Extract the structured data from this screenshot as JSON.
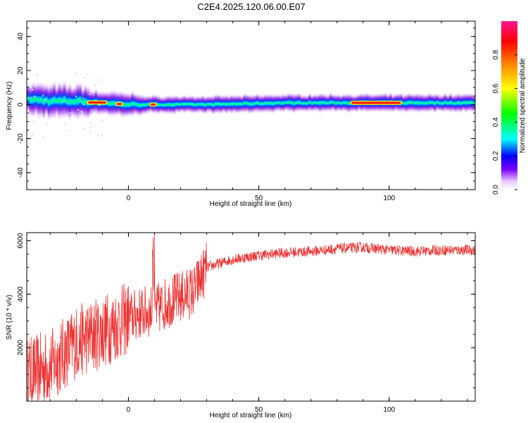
{
  "title": "C2E4.2025.120.06.00.E07",
  "chart_data": [
    {
      "type": "heatmap",
      "xlabel": "Height of straight line (km)",
      "ylabel": "Frequency (Hz)",
      "xlim": [
        -39,
        133
      ],
      "ylim": [
        -50,
        49
      ],
      "x_ticks": [
        0,
        50,
        100
      ],
      "x_tick_labels": [
        "0",
        "50",
        "100"
      ],
      "y_ticks": [
        -40,
        -20,
        0,
        20,
        40
      ],
      "y_tick_labels": [
        "-40",
        "-20",
        "0",
        "20",
        "40"
      ],
      "colorbar": {
        "label": "Normalized spectral amplitude",
        "range": [
          0,
          1
        ],
        "ticks": [
          0.0,
          0.2,
          0.4,
          0.6,
          0.8
        ],
        "tick_labels": [
          "0.0",
          "0.2",
          "0.4",
          "0.6",
          "0.8"
        ]
      },
      "ridge_center_hz": [
        [
          -39,
          3
        ],
        [
          -30,
          2
        ],
        [
          -20,
          2
        ],
        [
          -10,
          1
        ],
        [
          0,
          0
        ],
        [
          10,
          0
        ],
        [
          30,
          0
        ],
        [
          60,
          1
        ],
        [
          100,
          1
        ],
        [
          133,
          1
        ]
      ],
      "peak_segments_x": [
        [
          -16,
          -8
        ],
        [
          -5,
          -2
        ],
        [
          8,
          11
        ],
        [
          85,
          105
        ]
      ]
    },
    {
      "type": "line",
      "xlabel": "Height of straight line (km)",
      "ylabel": "SNR (10 * v/v)",
      "xlim": [
        -39,
        133
      ],
      "ylim": [
        0,
        6300
      ],
      "x_ticks": [
        0,
        50,
        100
      ],
      "x_tick_labels": [
        "0",
        "50",
        "100"
      ],
      "y_ticks": [
        2000,
        4000,
        6000
      ],
      "y_tick_labels": [
        "2000",
        "4000",
        "6000"
      ],
      "color": "#ee3333",
      "trend": {
        "x": [
          -39,
          -30,
          -20,
          -10,
          0,
          5,
          10,
          15,
          20,
          25,
          30,
          40,
          50,
          60,
          70,
          80,
          90,
          100,
          110,
          120,
          133
        ],
        "y": [
          1000,
          1300,
          2200,
          2600,
          3100,
          3300,
          3350,
          3700,
          3900,
          4100,
          5000,
          5300,
          5450,
          5550,
          5600,
          5700,
          5750,
          5650,
          5600,
          5650,
          5650
        ]
      }
    }
  ]
}
